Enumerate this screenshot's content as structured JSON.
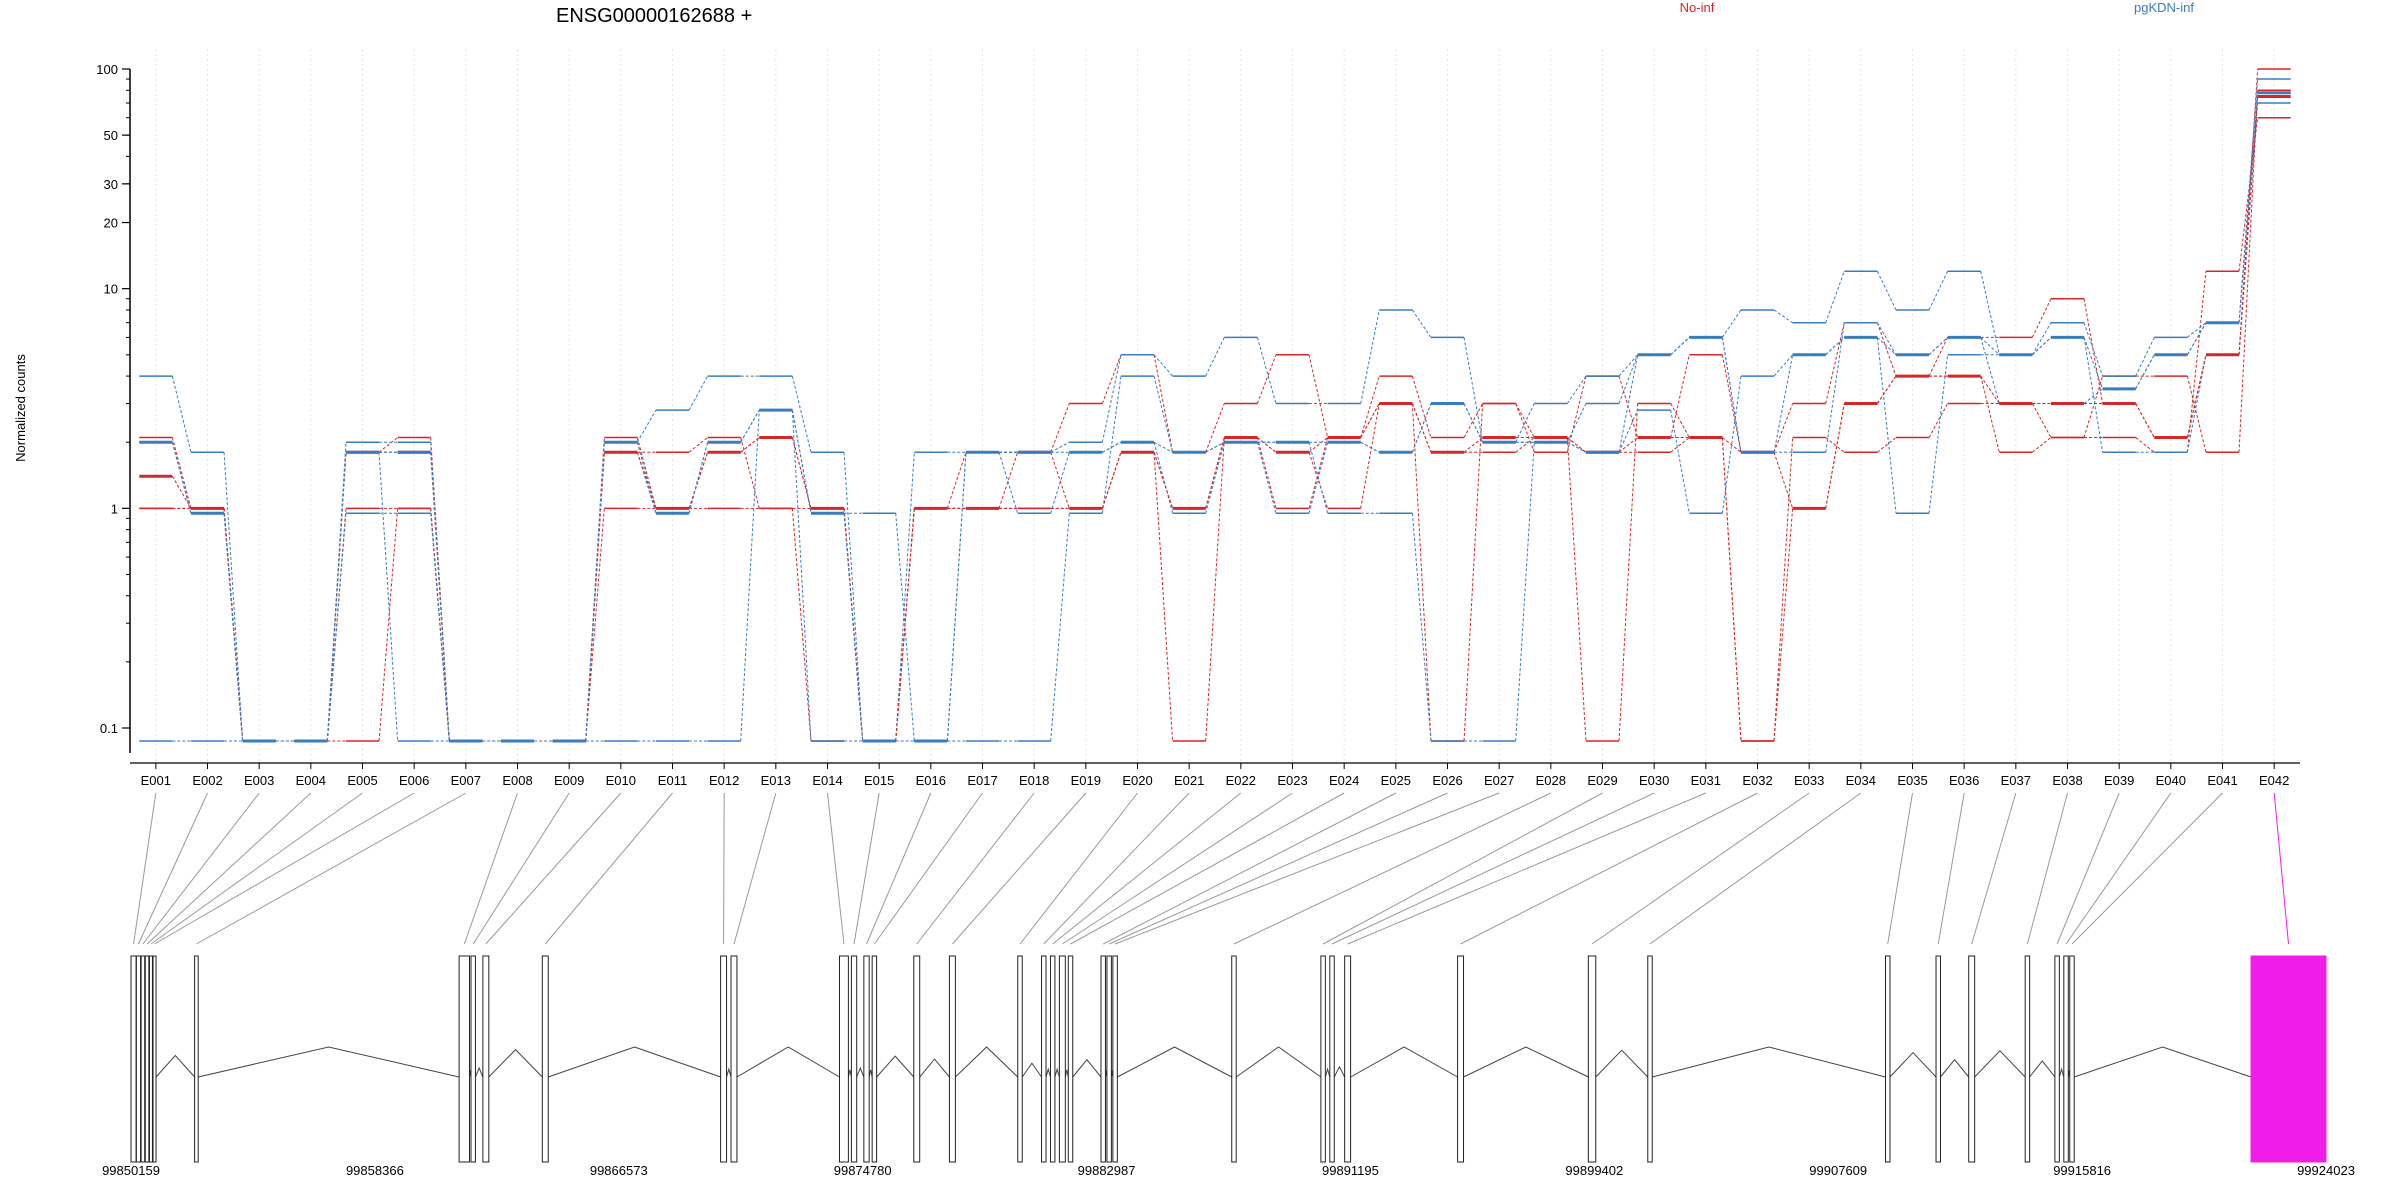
{
  "chart_data": {
    "type": "line",
    "title": "ENSG00000162688 +",
    "ylabel": "Normalized counts",
    "y_scale": "log",
    "ylim": [
      0.07,
      100
    ],
    "y_ticks": [
      "0.1",
      "1",
      "10",
      "20",
      "30",
      "50",
      "100"
    ],
    "grid": "vertical-dotted",
    "legend": [
      {
        "name": "No-inf",
        "color": "#d62728"
      },
      {
        "name": "pgKDN-inf",
        "color": "#3a7dbf"
      }
    ],
    "categories": [
      "E001",
      "E002",
      "E003",
      "E004",
      "E005",
      "E006",
      "E007",
      "E008",
      "E009",
      "E010",
      "E011",
      "E012",
      "E013",
      "E014",
      "E015",
      "E016",
      "E017",
      "E018",
      "E019",
      "E020",
      "E021",
      "E022",
      "E023",
      "E024",
      "E025",
      "E026",
      "E027",
      "E028",
      "E029",
      "E030",
      "E031",
      "E032",
      "E033",
      "E034",
      "E035",
      "E036",
      "E037",
      "E038",
      "E039",
      "E040",
      "E041",
      "E042"
    ],
    "series": [
      {
        "group": "No-inf",
        "values": [
          2.1,
          1.0,
          0.07,
          0.07,
          1.8,
          2.1,
          0.07,
          0.07,
          0.07,
          2.1,
          1.0,
          1.8,
          2.1,
          1.0,
          0.07,
          1.0,
          1.8,
          1.8,
          3.0,
          5.0,
          1.8,
          3.0,
          5.0,
          2.1,
          4.0,
          2.1,
          3.0,
          1.8,
          4.0,
          2.1,
          5.0,
          1.8,
          3.0,
          7.0,
          4.0,
          6.0,
          6.0,
          9.0,
          3.0,
          2.1,
          5.0,
          100
        ]
      },
      {
        "group": "No-inf",
        "values": [
          1.0,
          1.0,
          0.07,
          0.07,
          1.0,
          1.0,
          0.07,
          0.07,
          0.07,
          1.8,
          1.8,
          2.1,
          1.0,
          1.0,
          0.07,
          1.0,
          1.0,
          1.0,
          1.0,
          1.8,
          1.0,
          2.1,
          1.8,
          1.0,
          3.0,
          1.8,
          1.8,
          2.1,
          1.8,
          1.8,
          2.1,
          0.07,
          1.0,
          3.0,
          4.0,
          4.0,
          1.8,
          2.1,
          2.1,
          1.8,
          12.0,
          60
        ]
      },
      {
        "group": "No-inf",
        "values": [
          1.0,
          1.0,
          0.07,
          0.07,
          0.07,
          1.0,
          0.07,
          0.07,
          0.07,
          1.0,
          1.0,
          1.0,
          1.0,
          0.07,
          0.07,
          1.0,
          1.0,
          1.0,
          1.0,
          1.8,
          0.07,
          2.1,
          1.0,
          2.1,
          3.0,
          0.07,
          3.0,
          2.1,
          0.07,
          3.0,
          2.1,
          0.07,
          2.1,
          1.8,
          2.1,
          3.0,
          3.0,
          2.1,
          4.0,
          4.0,
          1.8,
          80
        ]
      },
      {
        "group": "pgKDN-inf",
        "values": [
          4.0,
          1.8,
          0.07,
          0.07,
          2.0,
          2.0,
          0.07,
          0.07,
          0.07,
          2.0,
          2.8,
          4.0,
          4.0,
          1.8,
          0.07,
          1.8,
          1.8,
          1.8,
          2.0,
          5.0,
          4.0,
          6.0,
          3.0,
          3.0,
          8.0,
          6.0,
          2.0,
          3.0,
          4.0,
          5.0,
          6.0,
          8.0,
          7.0,
          12.0,
          8.0,
          12.0,
          5.0,
          7.0,
          4.0,
          6.0,
          7.0,
          90
        ]
      },
      {
        "group": "pgKDN-inf",
        "values": [
          2.0,
          0.95,
          0.07,
          0.07,
          0.95,
          0.95,
          0.07,
          0.07,
          0.07,
          1.8,
          0.95,
          2.0,
          2.8,
          0.95,
          0.95,
          0.07,
          1.8,
          0.95,
          1.8,
          2.0,
          0.95,
          2.0,
          0.95,
          2.0,
          1.8,
          3.0,
          2.0,
          2.0,
          1.8,
          2.8,
          0.95,
          4.0,
          5.0,
          6.0,
          0.95,
          5.0,
          5.0,
          6.0,
          1.8,
          1.8,
          5.0,
          70
        ]
      },
      {
        "group": "pgKDN-inf",
        "values": [
          0.07,
          0.07,
          0.07,
          0.07,
          1.8,
          0.07,
          0.07,
          0.07,
          0.07,
          0.07,
          0.07,
          0.07,
          2.8,
          0.07,
          0.07,
          0.07,
          0.07,
          0.07,
          0.95,
          4.0,
          1.8,
          2.0,
          2.0,
          0.95,
          0.95,
          0.07,
          0.07,
          2.0,
          3.0,
          5.0,
          6.0,
          1.8,
          1.8,
          7.0,
          5.0,
          6.0,
          3.0,
          3.0,
          3.5,
          5.0,
          7.0,
          78
        ]
      }
    ],
    "mean_series": [
      {
        "group": "No-inf",
        "values": [
          1.4,
          1.0,
          0.07,
          0.07,
          1.8,
          1.8,
          0.07,
          0.07,
          0.07,
          1.8,
          1.0,
          1.8,
          2.1,
          1.0,
          0.07,
          1.0,
          1.0,
          1.8,
          1.0,
          1.8,
          1.0,
          2.1,
          1.8,
          2.1,
          3.0,
          1.8,
          2.1,
          2.1,
          1.8,
          2.1,
          2.1,
          1.8,
          1.0,
          3.0,
          4.0,
          4.0,
          3.0,
          3.0,
          3.0,
          2.1,
          5.0,
          75
        ]
      },
      {
        "group": "pgKDN-inf",
        "values": [
          2.0,
          0.95,
          0.07,
          0.07,
          1.8,
          1.8,
          0.07,
          0.07,
          0.07,
          2.0,
          0.95,
          2.0,
          2.8,
          0.95,
          0.07,
          0.07,
          1.8,
          1.8,
          1.8,
          2.0,
          1.8,
          2.0,
          2.0,
          2.0,
          1.8,
          3.0,
          2.0,
          2.0,
          1.8,
          5.0,
          6.0,
          1.8,
          5.0,
          6.0,
          5.0,
          6.0,
          5.0,
          6.0,
          3.5,
          5.0,
          7.0,
          78
        ]
      }
    ],
    "highlight": {
      "exon": "E042",
      "color": "#f01de8"
    },
    "gene_model": {
      "coordinate_labels": [
        "99850159",
        "99858366",
        "99866573",
        "99874780",
        "99882987",
        "99891195",
        "99899402",
        "99907609",
        "99915816",
        "99924023"
      ],
      "range": [
        99850159,
        99924023
      ],
      "exons": [
        {
          "id": "E001",
          "start": 99850159,
          "end": 99850330
        },
        {
          "id": "E002",
          "start": 99850340,
          "end": 99850480
        },
        {
          "id": "E003",
          "start": 99850500,
          "end": 99850620
        },
        {
          "id": "E004",
          "start": 99850640,
          "end": 99850760
        },
        {
          "id": "E005",
          "start": 99850780,
          "end": 99850880
        },
        {
          "id": "E006",
          "start": 99850900,
          "end": 99851000
        },
        {
          "id": "E007",
          "start": 99852300,
          "end": 99852420
        },
        {
          "id": "E008",
          "start": 99861200,
          "end": 99861550
        },
        {
          "id": "E009",
          "start": 99861600,
          "end": 99861750
        },
        {
          "id": "E010",
          "start": 99862000,
          "end": 99862200
        },
        {
          "id": "E011",
          "start": 99864000,
          "end": 99864200
        },
        {
          "id": "E012",
          "start": 99870000,
          "end": 99870200
        },
        {
          "id": "E013",
          "start": 99870350,
          "end": 99870550
        },
        {
          "id": "E014",
          "start": 99874000,
          "end": 99874300
        },
        {
          "id": "E015",
          "start": 99874400,
          "end": 99874580
        },
        {
          "id": "E016",
          "start": 99874820,
          "end": 99875000
        },
        {
          "id": "E017",
          "start": 99875100,
          "end": 99875250
        },
        {
          "id": "E018",
          "start": 99876500,
          "end": 99876700
        },
        {
          "id": "E019",
          "start": 99877700,
          "end": 99877900
        },
        {
          "id": "E020",
          "start": 99880000,
          "end": 99880150
        },
        {
          "id": "E021",
          "start": 99880800,
          "end": 99880950
        },
        {
          "id": "E022",
          "start": 99881100,
          "end": 99881250
        },
        {
          "id": "E023",
          "start": 99881400,
          "end": 99881600
        },
        {
          "id": "E024",
          "start": 99881700,
          "end": 99881850
        },
        {
          "id": "E025",
          "start": 99882800,
          "end": 99882950
        },
        {
          "id": "E026",
          "start": 99883000,
          "end": 99883150
        },
        {
          "id": "E027",
          "start": 99883200,
          "end": 99883350
        },
        {
          "id": "E028",
          "start": 99887200,
          "end": 99887350
        },
        {
          "id": "E029",
          "start": 99890200,
          "end": 99890350
        },
        {
          "id": "E030",
          "start": 99890500,
          "end": 99890650
        },
        {
          "id": "E031",
          "start": 99891000,
          "end": 99891200
        },
        {
          "id": "E032",
          "start": 99894800,
          "end": 99895000
        },
        {
          "id": "E033",
          "start": 99899200,
          "end": 99899450
        },
        {
          "id": "E034",
          "start": 99901200,
          "end": 99901350
        },
        {
          "id": "E035",
          "start": 99909200,
          "end": 99909350
        },
        {
          "id": "E036",
          "start": 99910900,
          "end": 99911050
        },
        {
          "id": "E037",
          "start": 99912000,
          "end": 99912200
        },
        {
          "id": "E038",
          "start": 99913900,
          "end": 99914050
        },
        {
          "id": "E039",
          "start": 99914900,
          "end": 99915050
        },
        {
          "id": "E040",
          "start": 99915200,
          "end": 99915350
        },
        {
          "id": "E041",
          "start": 99915400,
          "end": 99915550
        },
        {
          "id": "E042",
          "start": 99921500,
          "end": 99924023
        }
      ]
    }
  }
}
